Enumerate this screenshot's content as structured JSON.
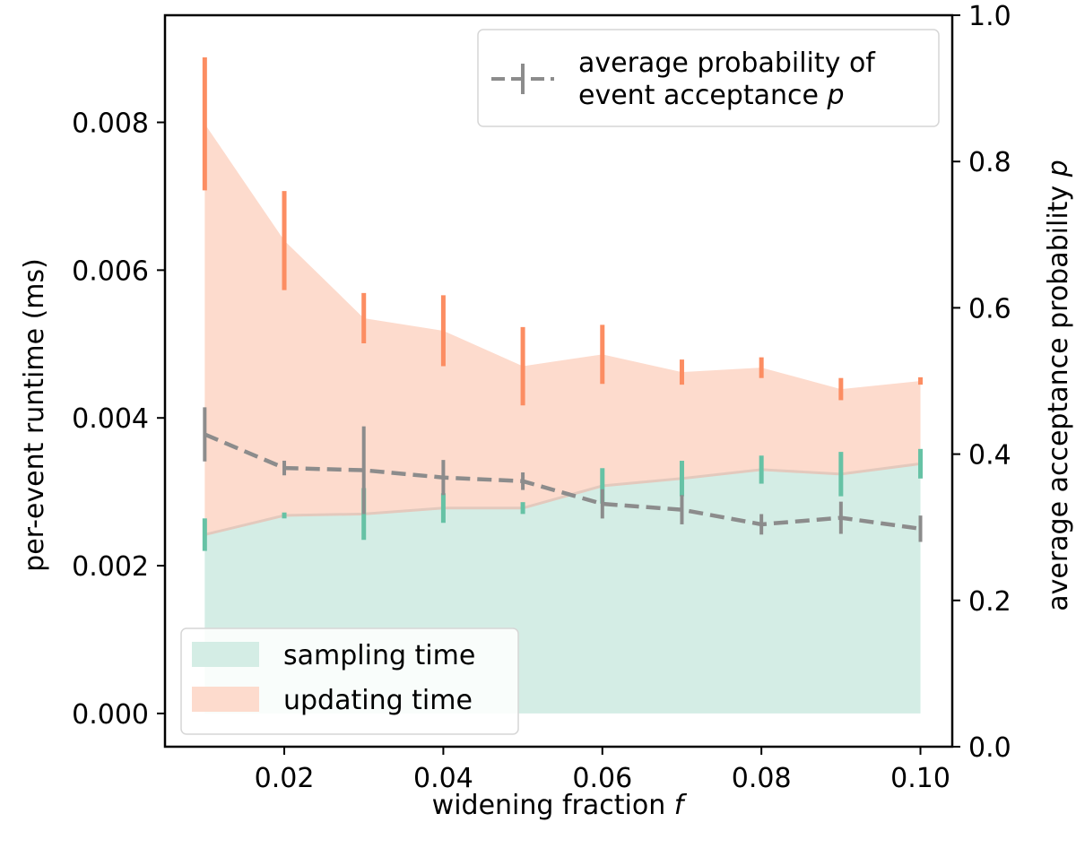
{
  "chart_data": {
    "type": "area",
    "x": [
      0.01,
      0.02,
      0.03,
      0.04,
      0.05,
      0.06,
      0.07,
      0.08,
      0.09,
      0.1
    ],
    "xlim": [
      0.005,
      0.104
    ],
    "xticks": [
      0.02,
      0.04,
      0.06,
      0.08,
      0.1
    ],
    "xtick_labels": [
      "0.02",
      "0.04",
      "0.06",
      "0.08",
      "0.10"
    ],
    "xlabel": "widening fraction",
    "xlabel_symbol": "f",
    "left_axis": {
      "label": "per-event runtime (ms)",
      "ylim": [
        -0.00045,
        0.00945
      ],
      "ticks": [
        0,
        0.002,
        0.004,
        0.006,
        0.008
      ],
      "tick_labels": [
        "0.000",
        "0.002",
        "0.004",
        "0.006",
        "0.008"
      ]
    },
    "right_axis": {
      "label": "average acceptance probability",
      "label_symbol": "p",
      "ylim": [
        0,
        1
      ],
      "ticks": [
        0,
        0.2,
        0.4,
        0.6,
        0.8,
        1.0
      ],
      "tick_labels": [
        "0.0",
        "0.2",
        "0.4",
        "0.6",
        "0.8",
        "1.0"
      ]
    },
    "series": [
      {
        "name": "sampling time",
        "axis": "left",
        "style": "stacked-area",
        "color": "#66c2a5",
        "fill_color": "#d4ede5",
        "values": [
          0.00242,
          0.00268,
          0.0027,
          0.00278,
          0.00278,
          0.00308,
          0.00318,
          0.0033,
          0.00324,
          0.00338
        ],
        "errors": [
          0.00022,
          4e-05,
          0.00035,
          0.0002,
          8e-05,
          0.00024,
          0.00024,
          0.00019,
          0.0003,
          0.0002
        ]
      },
      {
        "name": "updating time",
        "axis": "left",
        "style": "stacked-area",
        "color": "#fc8d62",
        "fill_color": "#fddbcd",
        "values": [
          0.00798,
          0.0064,
          0.00535,
          0.00518,
          0.0047,
          0.00486,
          0.00462,
          0.00468,
          0.00439,
          0.0045
        ],
        "errors": [
          0.0009,
          0.00067,
          0.00034,
          0.00048,
          0.00053,
          0.0004,
          0.00017,
          0.00014,
          0.00015,
          5e-05
        ]
      },
      {
        "name": "average probability of event acceptance",
        "name_line1": "average probability of",
        "name_line2": "event acceptance",
        "symbol": "p",
        "axis": "right",
        "style": "dashed-line-errorbar",
        "color": "#8c8c8c",
        "values": [
          0.427,
          0.381,
          0.378,
          0.368,
          0.363,
          0.332,
          0.324,
          0.304,
          0.313,
          0.298
        ],
        "errors": [
          0.037,
          0.01,
          0.06,
          0.024,
          0.012,
          0.02,
          0.02,
          0.014,
          0.022,
          0.018
        ]
      }
    ],
    "legends": [
      {
        "position": "lower-left",
        "entries": [
          "sampling time",
          "updating time"
        ]
      },
      {
        "position": "upper-right",
        "entries": [
          "average probability of event acceptance"
        ]
      }
    ]
  }
}
